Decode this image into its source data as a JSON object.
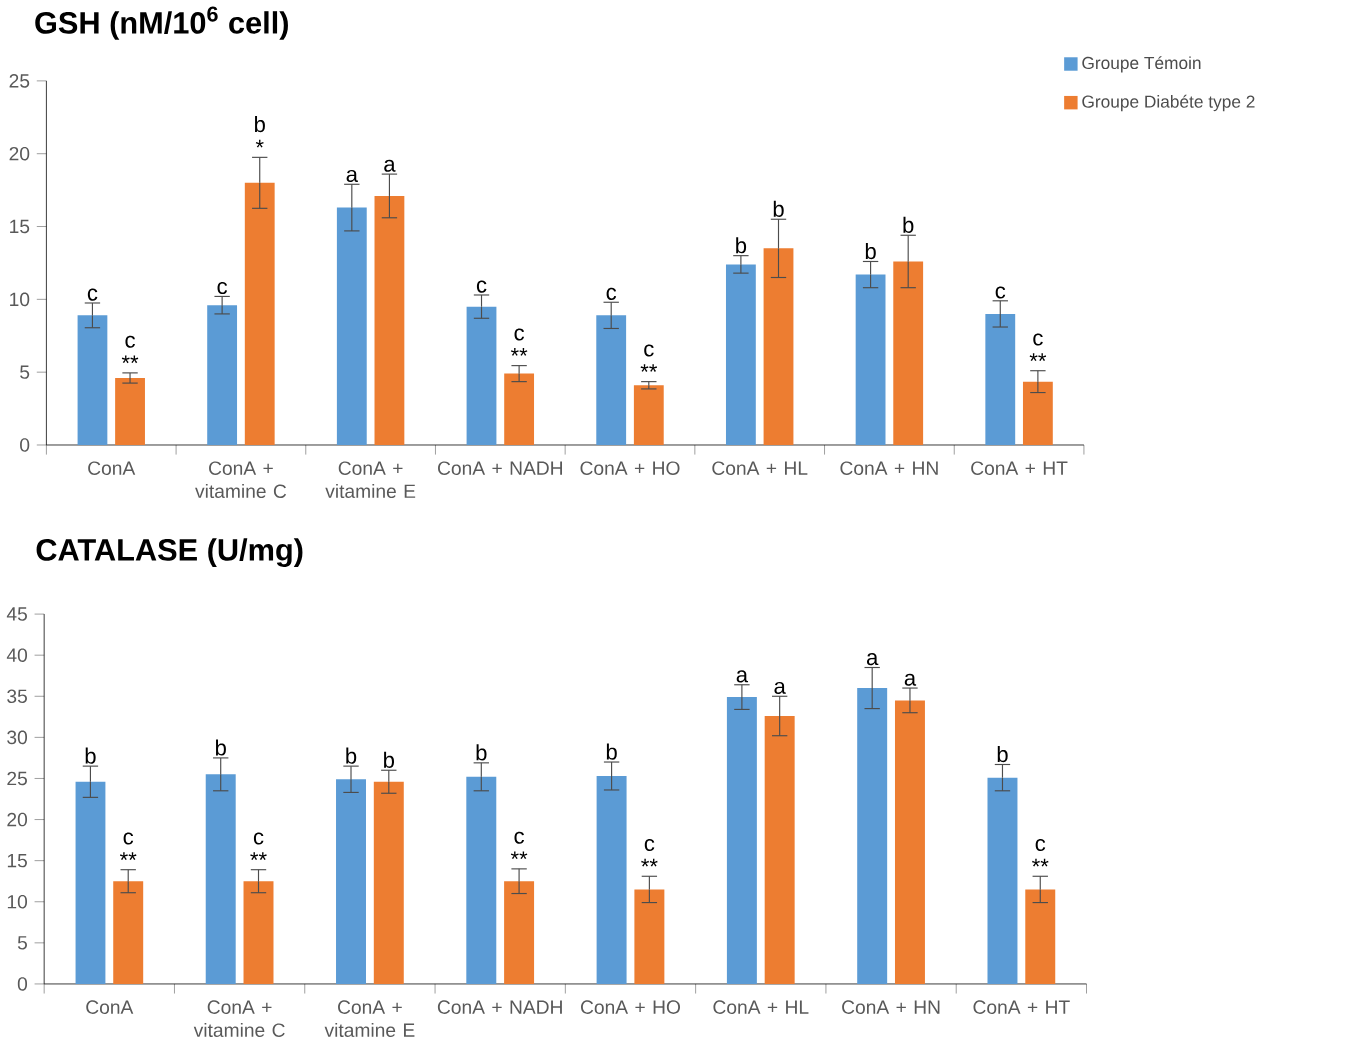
{
  "chart_data": [
    {
      "type": "bar",
      "title": "GSH (nM/10$^{6}$ cell)",
      "categories": [
        "ConA",
        "ConA + vitamine C",
        "ConA + vitamine E",
        "ConA + NADH",
        "ConA + HO",
        "ConA + HL",
        "ConA + HN",
        "ConA + HT"
      ],
      "series": [
        {
          "name": "Groupe Témoin",
          "color": "#5b9bd5",
          "values": [
            8.9,
            9.6,
            16.3,
            9.5,
            8.9,
            12.4,
            11.7,
            9.0
          ],
          "errors": [
            0.85,
            0.6,
            1.6,
            0.8,
            0.9,
            0.6,
            0.9,
            0.9
          ],
          "value_labels": [
            "c",
            "c",
            "a",
            "c",
            "c",
            "b",
            "b",
            "c"
          ]
        },
        {
          "name": "Groupe Diabéte type 2",
          "color": "#ed7d31",
          "values": [
            4.6,
            18.0,
            17.1,
            4.9,
            4.1,
            13.5,
            12.6,
            4.35
          ],
          "errors": [
            0.35,
            1.75,
            1.5,
            0.55,
            0.25,
            2.0,
            1.8,
            0.75
          ],
          "value_labels": [
            "c **",
            "b *",
            "a",
            "c **",
            "c **",
            "b",
            "b",
            "c **"
          ]
        }
      ],
      "ylim": [
        0,
        25
      ],
      "yticks": [
        0,
        5,
        10,
        15,
        20,
        25
      ],
      "legend": "top right"
    },
    {
      "type": "bar",
      "title": "CATALASE (U/mg)",
      "categories": [
        "ConA",
        "ConA + vitamine C",
        "ConA + vitamine E",
        "ConA + NADH",
        "ConA + HO",
        "ConA + HL",
        "ConA + HN",
        "ConA + HT"
      ],
      "series": [
        {
          "color": "#5b9bd5",
          "values": [
            24.6,
            25.5,
            24.9,
            25.2,
            25.3,
            34.9,
            36.0,
            25.1
          ],
          "errors": [
            1.9,
            2.0,
            1.6,
            1.7,
            1.7,
            1.5,
            2.5,
            1.6
          ],
          "value_labels": [
            "b",
            "b",
            "b",
            "b",
            "b",
            "a",
            "a",
            "b"
          ]
        },
        {
          "color": "#ed7d31",
          "values": [
            12.5,
            12.5,
            24.6,
            12.5,
            11.5,
            32.6,
            34.5,
            11.5
          ],
          "errors": [
            1.4,
            1.4,
            1.4,
            1.5,
            1.6,
            2.4,
            1.5,
            1.6
          ],
          "value_labels": [
            "c **",
            "c **",
            "b",
            "c **",
            "c **",
            "a",
            "a",
            "c **"
          ]
        }
      ],
      "ylim": [
        0,
        45
      ],
      "yticks": [
        0,
        5,
        10,
        15,
        20,
        25,
        30,
        35,
        40,
        45
      ]
    }
  ]
}
